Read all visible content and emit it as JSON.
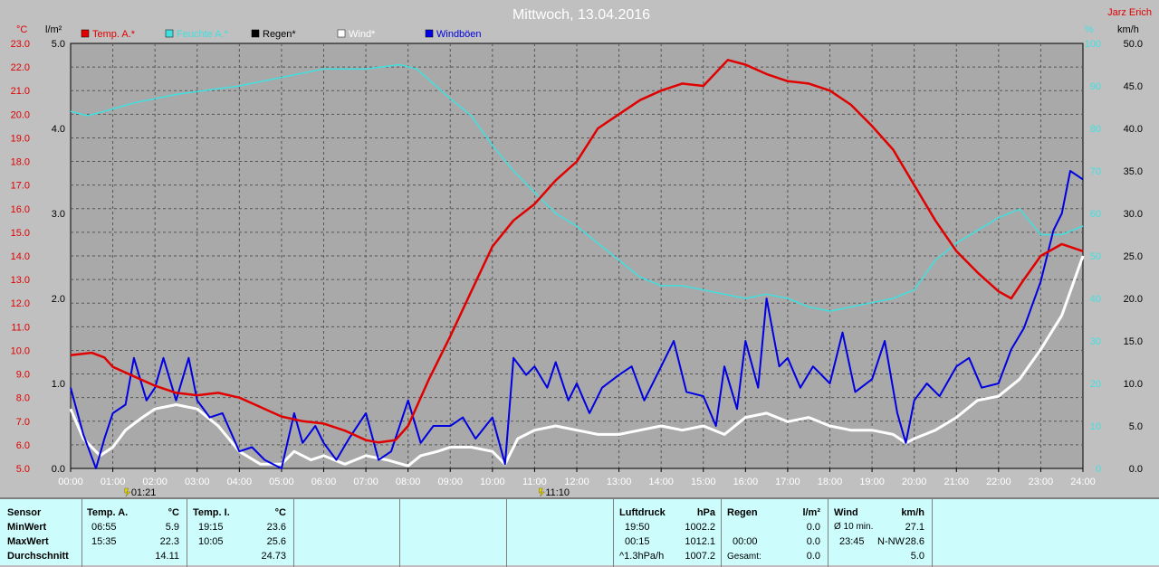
{
  "chart_data": {
    "type": "line",
    "title": "Mittwoch, 13.04.2016",
    "author": "Jarz Erich",
    "legend": [
      {
        "label": "Temp. A.*",
        "color": "#e00000"
      },
      {
        "label": "Feuchte A.*",
        "color": "#40e0e0"
      },
      {
        "label": "Regen*",
        "color": "#000000"
      },
      {
        "label": "Wind*",
        "color": "#ffffff"
      },
      {
        "label": "Windböen",
        "color": "#0000e0"
      }
    ],
    "axes": {
      "temp": {
        "unit": "°C",
        "min": 5.0,
        "max": 23.0,
        "ticks": [
          "5.0",
          "6.0",
          "7.0",
          "8.0",
          "9.0",
          "10.0",
          "11.0",
          "12.0",
          "13.0",
          "14.0",
          "15.0",
          "16.0",
          "17.0",
          "18.0",
          "19.0",
          "20.0",
          "21.0",
          "22.0",
          "23.0"
        ]
      },
      "rain": {
        "unit": "l/m²",
        "min": 0.0,
        "max": 5.0,
        "ticks": [
          "0.0",
          "1.0",
          "2.0",
          "3.0",
          "4.0",
          "5.0"
        ]
      },
      "humidity": {
        "unit": "%",
        "min": 0,
        "max": 100,
        "ticks": [
          "0",
          "10",
          "20",
          "30",
          "40",
          "50",
          "60",
          "70",
          "80",
          "90",
          "100"
        ]
      },
      "wind": {
        "unit": "km/h",
        "min": 0.0,
        "max": 50.0,
        "ticks": [
          "0.0",
          "5.0",
          "10.0",
          "15.0",
          "20.0",
          "25.0",
          "30.0",
          "35.0",
          "40.0",
          "45.0",
          "50.0"
        ]
      },
      "x": {
        "min": 0,
        "max": 24,
        "ticks": [
          "00:00",
          "01:00",
          "02:00",
          "03:00",
          "04:00",
          "05:00",
          "06:00",
          "07:00",
          "08:00",
          "09:00",
          "10:00",
          "11:00",
          "12:00",
          "13:00",
          "14:00",
          "15:00",
          "16:00",
          "17:00",
          "18:00",
          "19:00",
          "20:00",
          "21:00",
          "22:00",
          "23:00",
          "24:00"
        ]
      }
    },
    "markers": [
      {
        "x": 1.35,
        "label": "01:21"
      },
      {
        "x": 11.17,
        "label": "11:10"
      }
    ],
    "series": [
      {
        "name": "Temp. A.*",
        "axis": "temp",
        "color": "#e00000",
        "points": [
          [
            0,
            9.8
          ],
          [
            0.5,
            9.9
          ],
          [
            0.8,
            9.7
          ],
          [
            1,
            9.3
          ],
          [
            1.5,
            8.9
          ],
          [
            2,
            8.5
          ],
          [
            2.5,
            8.2
          ],
          [
            3,
            8.1
          ],
          [
            3.5,
            8.2
          ],
          [
            4,
            8.0
          ],
          [
            4.5,
            7.6
          ],
          [
            5,
            7.2
          ],
          [
            5.5,
            7.0
          ],
          [
            6,
            6.9
          ],
          [
            6.5,
            6.6
          ],
          [
            7,
            6.2
          ],
          [
            7.3,
            6.1
          ],
          [
            7.7,
            6.2
          ],
          [
            8,
            6.8
          ],
          [
            8.5,
            8.8
          ],
          [
            9,
            10.6
          ],
          [
            9.5,
            12.5
          ],
          [
            10,
            14.4
          ],
          [
            10.5,
            15.5
          ],
          [
            11,
            16.2
          ],
          [
            11.5,
            17.2
          ],
          [
            12,
            18.0
          ],
          [
            12.5,
            19.4
          ],
          [
            13,
            20.0
          ],
          [
            13.5,
            20.6
          ],
          [
            14,
            21.0
          ],
          [
            14.5,
            21.3
          ],
          [
            15,
            21.2
          ],
          [
            15.58,
            22.3
          ],
          [
            16,
            22.1
          ],
          [
            16.5,
            21.7
          ],
          [
            17,
            21.4
          ],
          [
            17.5,
            21.3
          ],
          [
            18,
            21.0
          ],
          [
            18.5,
            20.4
          ],
          [
            19,
            19.5
          ],
          [
            19.5,
            18.5
          ],
          [
            20,
            17.0
          ],
          [
            20.5,
            15.5
          ],
          [
            21,
            14.2
          ],
          [
            21.5,
            13.3
          ],
          [
            22,
            12.5
          ],
          [
            22.3,
            12.2
          ],
          [
            22.6,
            13.0
          ],
          [
            23,
            14.0
          ],
          [
            23.5,
            14.5
          ],
          [
            24,
            14.2
          ]
        ]
      },
      {
        "name": "Feuchte A.*",
        "axis": "humidity",
        "color": "#40e0e0",
        "points": [
          [
            0,
            84
          ],
          [
            0.4,
            83
          ],
          [
            0.8,
            84
          ],
          [
            1.5,
            86
          ],
          [
            2.5,
            88
          ],
          [
            4,
            90
          ],
          [
            5,
            92
          ],
          [
            6,
            94
          ],
          [
            7,
            94
          ],
          [
            7.8,
            95
          ],
          [
            8.2,
            94
          ],
          [
            9,
            87
          ],
          [
            9.5,
            83
          ],
          [
            10,
            76
          ],
          [
            10.5,
            70
          ],
          [
            11,
            65
          ],
          [
            11.5,
            60
          ],
          [
            12,
            57
          ],
          [
            12.5,
            53
          ],
          [
            13,
            49
          ],
          [
            13.5,
            45
          ],
          [
            14,
            43
          ],
          [
            14.5,
            43
          ],
          [
            15,
            42
          ],
          [
            15.5,
            41
          ],
          [
            16,
            40
          ],
          [
            16.5,
            41
          ],
          [
            17,
            40
          ],
          [
            17.5,
            38
          ],
          [
            18,
            37
          ],
          [
            18.5,
            38
          ],
          [
            19,
            39
          ],
          [
            19.5,
            40
          ],
          [
            20,
            42
          ],
          [
            20.5,
            49
          ],
          [
            21,
            53
          ],
          [
            21.5,
            56
          ],
          [
            22,
            59
          ],
          [
            22.5,
            61
          ],
          [
            23,
            55
          ],
          [
            23.5,
            55
          ],
          [
            24,
            57
          ]
        ]
      },
      {
        "name": "Wind*",
        "axis": "wind",
        "color": "#ffffff",
        "points": [
          [
            0,
            7.0
          ],
          [
            0.3,
            3.5
          ],
          [
            0.7,
            1.5
          ],
          [
            1,
            2.5
          ],
          [
            1.3,
            4.5
          ],
          [
            1.7,
            6.0
          ],
          [
            2,
            7.0
          ],
          [
            2.5,
            7.5
          ],
          [
            3,
            7.0
          ],
          [
            3.5,
            5.0
          ],
          [
            4,
            2.0
          ],
          [
            4.5,
            0.5
          ],
          [
            5,
            0.5
          ],
          [
            5.3,
            2.0
          ],
          [
            5.7,
            1.0
          ],
          [
            6,
            1.5
          ],
          [
            6.5,
            0.5
          ],
          [
            7,
            1.5
          ],
          [
            7.5,
            1.0
          ],
          [
            8,
            0.3
          ],
          [
            8.3,
            1.5
          ],
          [
            8.7,
            2.0
          ],
          [
            9,
            2.5
          ],
          [
            9.5,
            2.5
          ],
          [
            10,
            2.0
          ],
          [
            10.3,
            0.5
          ],
          [
            10.6,
            3.5
          ],
          [
            11,
            4.5
          ],
          [
            11.5,
            5.0
          ],
          [
            12,
            4.5
          ],
          [
            12.5,
            4.0
          ],
          [
            13,
            4.0
          ],
          [
            13.5,
            4.5
          ],
          [
            14,
            5.0
          ],
          [
            14.5,
            4.5
          ],
          [
            15,
            5.0
          ],
          [
            15.5,
            4.0
          ],
          [
            16,
            6.0
          ],
          [
            16.5,
            6.5
          ],
          [
            17,
            5.5
          ],
          [
            17.5,
            6.0
          ],
          [
            18,
            5.0
          ],
          [
            18.5,
            4.5
          ],
          [
            19,
            4.5
          ],
          [
            19.5,
            4.0
          ],
          [
            19.8,
            3.0
          ],
          [
            20,
            3.5
          ],
          [
            20.5,
            4.5
          ],
          [
            21,
            6.0
          ],
          [
            21.5,
            8.0
          ],
          [
            22,
            8.5
          ],
          [
            22.5,
            10.5
          ],
          [
            23,
            14.0
          ],
          [
            23.5,
            18.0
          ],
          [
            24,
            25.0
          ]
        ]
      },
      {
        "name": "Windböen",
        "axis": "wind",
        "color": "#0000e0",
        "points": [
          [
            0,
            9.5
          ],
          [
            0.3,
            4.0
          ],
          [
            0.6,
            0.0
          ],
          [
            0.8,
            3.5
          ],
          [
            1,
            6.5
          ],
          [
            1.3,
            7.5
          ],
          [
            1.5,
            13.0
          ],
          [
            1.8,
            8.0
          ],
          [
            2,
            9.5
          ],
          [
            2.2,
            13.0
          ],
          [
            2.5,
            8.0
          ],
          [
            2.8,
            13.0
          ],
          [
            3,
            8.0
          ],
          [
            3.3,
            6.0
          ],
          [
            3.6,
            6.5
          ],
          [
            4,
            2.0
          ],
          [
            4.3,
            2.5
          ],
          [
            4.6,
            1.0
          ],
          [
            5,
            0.0
          ],
          [
            5.3,
            6.5
          ],
          [
            5.5,
            3.0
          ],
          [
            5.8,
            5.0
          ],
          [
            6,
            3.0
          ],
          [
            6.3,
            1.0
          ],
          [
            6.6,
            3.5
          ],
          [
            7,
            6.5
          ],
          [
            7.3,
            1.0
          ],
          [
            7.6,
            2.0
          ],
          [
            8,
            8.0
          ],
          [
            8.3,
            3.0
          ],
          [
            8.6,
            5.0
          ],
          [
            9,
            5.0
          ],
          [
            9.3,
            6.0
          ],
          [
            9.6,
            3.5
          ],
          [
            10,
            6.0
          ],
          [
            10.3,
            0.5
          ],
          [
            10.5,
            13.0
          ],
          [
            10.8,
            11.0
          ],
          [
            11,
            12.0
          ],
          [
            11.3,
            9.5
          ],
          [
            11.5,
            12.5
          ],
          [
            11.8,
            8.0
          ],
          [
            12,
            10.0
          ],
          [
            12.3,
            6.5
          ],
          [
            12.6,
            9.5
          ],
          [
            13,
            11.0
          ],
          [
            13.3,
            12.0
          ],
          [
            13.6,
            8.0
          ],
          [
            14,
            12.0
          ],
          [
            14.3,
            15.0
          ],
          [
            14.6,
            9.0
          ],
          [
            15,
            8.5
          ],
          [
            15.3,
            5.0
          ],
          [
            15.5,
            12.0
          ],
          [
            15.8,
            7.0
          ],
          [
            16,
            15.0
          ],
          [
            16.3,
            9.5
          ],
          [
            16.5,
            20.0
          ],
          [
            16.8,
            12.0
          ],
          [
            17,
            13.0
          ],
          [
            17.3,
            9.5
          ],
          [
            17.6,
            12.0
          ],
          [
            18,
            10.0
          ],
          [
            18.3,
            16.0
          ],
          [
            18.6,
            9.0
          ],
          [
            19,
            10.5
          ],
          [
            19.3,
            15.0
          ],
          [
            19.6,
            6.5
          ],
          [
            19.8,
            3.0
          ],
          [
            20,
            8.0
          ],
          [
            20.3,
            10.0
          ],
          [
            20.6,
            8.5
          ],
          [
            21,
            12.0
          ],
          [
            21.3,
            13.0
          ],
          [
            21.6,
            9.5
          ],
          [
            22,
            10.0
          ],
          [
            22.3,
            14.0
          ],
          [
            22.6,
            16.5
          ],
          [
            23,
            22.0
          ],
          [
            23.3,
            28.0
          ],
          [
            23.5,
            30.0
          ],
          [
            23.7,
            35.0
          ],
          [
            24,
            34.0
          ]
        ]
      },
      {
        "name": "Regen*",
        "axis": "rain",
        "color": "#000000",
        "points": [
          [
            0,
            0.0
          ],
          [
            24,
            0.0
          ]
        ]
      }
    ]
  },
  "table": {
    "sensor": {
      "header": "Sensor",
      "rows": [
        "MinWert",
        "MaxWert",
        "Durchschnitt"
      ]
    },
    "temp_a": {
      "title": "Temp. A.",
      "unit": "°C",
      "min_time": "06:55",
      "min_value": "5.9",
      "max_time": "15:35",
      "max_value": "22.3",
      "avg": "14.11"
    },
    "temp_i": {
      "title": "Temp. I.",
      "unit": "°C",
      "min_time": "19:15",
      "min_value": "23.6",
      "max_time": "10:05",
      "max_value": "25.6",
      "avg": "24.73"
    },
    "luftdruck": {
      "title": "Luftdruck",
      "unit": "hPa",
      "min_time": "19:50",
      "min_value": "1002.2",
      "max_time": "00:15",
      "max_value": "1012.1",
      "trend": "^1.3hPa/h",
      "avg": "1007.2"
    },
    "regen": {
      "title": "Regen",
      "unit": "l/m²",
      "time": "00:00",
      "value1": "0.0",
      "value2": "0.0",
      "total_label": "Gesamt:",
      "total": "0.0"
    },
    "wind": {
      "title": "Wind",
      "unit": "km/h",
      "avg_label": "Ø 10 min.",
      "avg_value": "27.1",
      "max_time": "23:45",
      "max_dir": "N-NW",
      "max_value": "28.6",
      "last": "5.0"
    }
  }
}
